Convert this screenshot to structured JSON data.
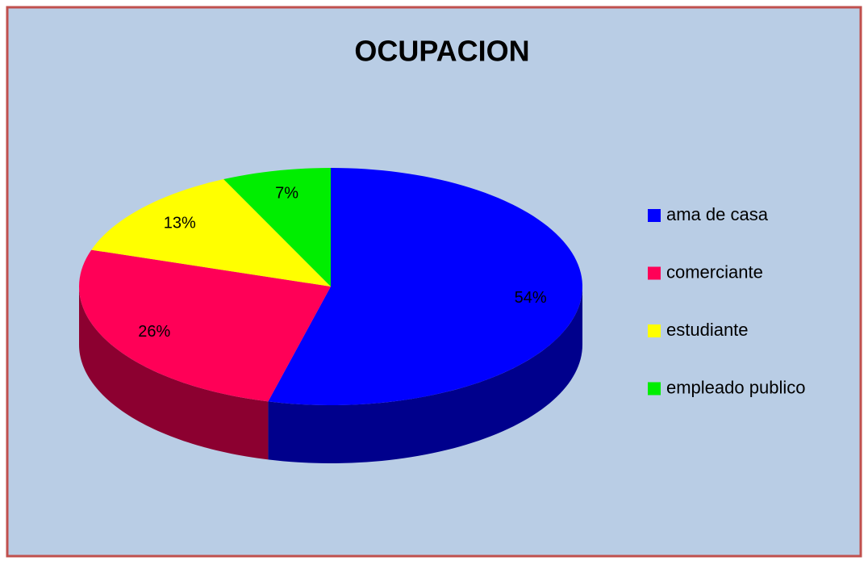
{
  "chart_data": {
    "type": "pie",
    "title": "OCUPACION",
    "categories": [
      "ama de casa",
      "comerciante",
      "estudiante",
      "empleado publico"
    ],
    "values": [
      54,
      26,
      13,
      7
    ],
    "value_labels": [
      "54%",
      "26%",
      "13%",
      "7%"
    ],
    "colors": [
      "#0000ff",
      "#ff0057",
      "#ffff00",
      "#00ee00"
    ],
    "legend": "right"
  }
}
